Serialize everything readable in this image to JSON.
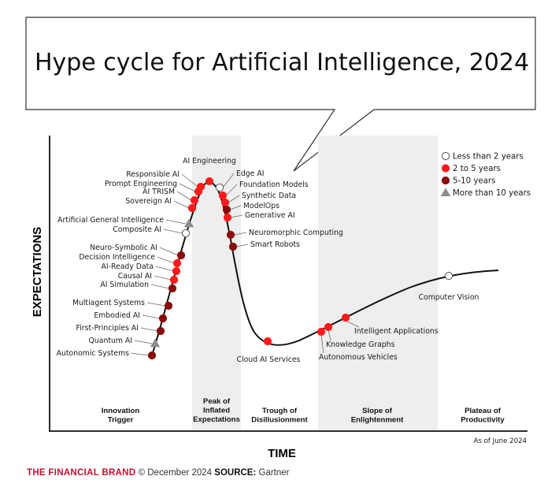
{
  "title": "Hype cycle for Artificial Intelligence, 2024",
  "axes": {
    "y_label": "EXPECTATIONS",
    "x_label": "TIME"
  },
  "legend": [
    {
      "key": "lt2",
      "label": "Less than 2 years",
      "shape": "circle",
      "fill": "#ffffff",
      "stroke": "#555555"
    },
    {
      "key": "2to5",
      "label": "2 to 5 years",
      "shape": "circle",
      "fill": "#ff1a1a",
      "stroke": "#ff1a1a"
    },
    {
      "key": "5to10",
      "label": "5-10 years",
      "shape": "circle",
      "fill": "#8b0a0a",
      "stroke": "#8b0a0a"
    },
    {
      "key": "gt10",
      "label": "More than 10 years",
      "shape": "triangle",
      "fill": "#8c8c8c",
      "stroke": "#8c8c8c"
    }
  ],
  "phases": [
    {
      "label": [
        "Innovation",
        "Trigger"
      ],
      "shaded": false
    },
    {
      "label": [
        "Peak of",
        "Inflated",
        "Expectations"
      ],
      "shaded": true
    },
    {
      "label": [
        "Trough of",
        "Disillusionment"
      ],
      "shaded": false
    },
    {
      "label": [
        "Slope of",
        "Enlightenment"
      ],
      "shaded": true
    },
    {
      "label": [
        "Plateau of",
        "Productivity"
      ],
      "shaded": false
    }
  ],
  "technologies": [
    {
      "name": "Autonomic Systems",
      "category": "5to10"
    },
    {
      "name": "Quantum AI",
      "category": "gt10"
    },
    {
      "name": "First-Principles AI",
      "category": "5to10"
    },
    {
      "name": "Embodied AI",
      "category": "5to10"
    },
    {
      "name": "Multiagent Systems",
      "category": "5to10"
    },
    {
      "name": "AI Simulation",
      "category": "5to10"
    },
    {
      "name": "Causal AI",
      "category": "2to5"
    },
    {
      "name": "AI-Ready Data",
      "category": "2to5"
    },
    {
      "name": "Decision Intelligence",
      "category": "2to5"
    },
    {
      "name": "Neuro-Symbolic AI",
      "category": "5to10"
    },
    {
      "name": "Composite AI",
      "category": "lt2"
    },
    {
      "name": "Artificial General Intelligence",
      "category": "gt10"
    },
    {
      "name": "Sovereign AI",
      "category": "2to5"
    },
    {
      "name": "AI TRISM",
      "category": "2to5"
    },
    {
      "name": "Prompt Engineering",
      "category": "2to5"
    },
    {
      "name": "Responsible AI",
      "category": "2to5"
    },
    {
      "name": "AI Engineering",
      "category": "2to5"
    },
    {
      "name": "Edge AI",
      "category": "lt2"
    },
    {
      "name": "Foundation Models",
      "category": "2to5"
    },
    {
      "name": "Synthetic Data",
      "category": "2to5"
    },
    {
      "name": "ModelOps",
      "category": "5to10"
    },
    {
      "name": "Generative AI",
      "category": "2to5"
    },
    {
      "name": "Neuromorphic Computing",
      "category": "5to10"
    },
    {
      "name": "Smart Robots",
      "category": "5to10"
    },
    {
      "name": "Cloud AI Services",
      "category": "2to5"
    },
    {
      "name": "Autonomous Vehicles",
      "category": "2to5"
    },
    {
      "name": "Knowledge Graphs",
      "category": "2to5"
    },
    {
      "name": "Intelligent Applications",
      "category": "2to5"
    },
    {
      "name": "Computer Vision",
      "category": "lt2"
    }
  ],
  "note": "As of June 2024",
  "footer": {
    "brand": "THE FINANCIAL BRAND",
    "date": "© December 2024",
    "source_label": "SOURCE:",
    "source": "Gartner"
  }
}
